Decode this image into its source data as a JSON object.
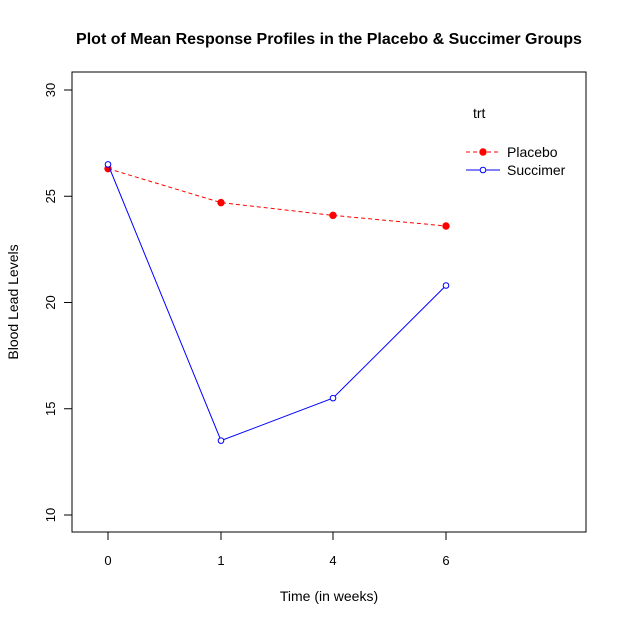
{
  "chart_data": {
    "type": "line",
    "title": "Plot of Mean Response Profiles in the Placebo & Succimer Groups",
    "xlabel": "Time (in weeks)",
    "ylabel": "Blood Lead Levels",
    "categories": [
      "0",
      "1",
      "4",
      "6"
    ],
    "ylim": [
      10,
      30
    ],
    "yticks": [
      10,
      15,
      20,
      25,
      30
    ],
    "grid": false,
    "legend": {
      "title": "trt",
      "placement": "top-right"
    },
    "series": [
      {
        "name": "Placebo",
        "values": [
          26.3,
          24.7,
          24.1,
          23.6
        ],
        "color": "#ff0000",
        "line_style": "dashed",
        "marker": "filled-circle"
      },
      {
        "name": "Succimer",
        "values": [
          26.5,
          13.5,
          15.5,
          20.8
        ],
        "color": "#0000ff",
        "line_style": "solid",
        "marker": "open-circle"
      }
    ]
  }
}
